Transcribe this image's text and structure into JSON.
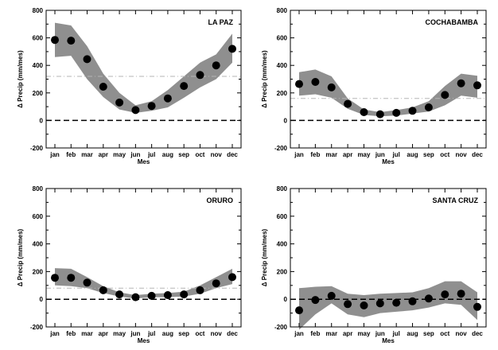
{
  "colors": {
    "band": "#8f8f8f",
    "marker": "#000000",
    "zero_line": "#000000",
    "reference_line": "#b6b6b6"
  },
  "chart_data": [
    {
      "type": "scatter",
      "title": "LA PAZ",
      "xlabel": "Mes",
      "ylabel": "Δ Precip (mm/mes)",
      "categories": [
        "jan",
        "feb",
        "mar",
        "apr",
        "may",
        "jun",
        "jul",
        "aug",
        "sep",
        "oct",
        "nov",
        "dec"
      ],
      "ylim": [
        -200,
        800
      ],
      "yticks": [
        -200,
        0,
        200,
        400,
        600,
        800
      ],
      "ytick_labels": [
        "-200",
        "0",
        "200",
        "400",
        "600",
        "800"
      ],
      "reference_value": 320,
      "grid": false,
      "series": [
        {
          "kind": "points",
          "values": [
            585,
            580,
            445,
            245,
            130,
            75,
            105,
            160,
            250,
            330,
            400,
            520
          ]
        },
        {
          "kind": "band_lower",
          "values": [
            460,
            470,
            300,
            170,
            80,
            55,
            70,
            95,
            165,
            240,
            300,
            420
          ]
        },
        {
          "kind": "band_upper",
          "values": [
            710,
            690,
            540,
            340,
            200,
            110,
            140,
            220,
            320,
            420,
            480,
            630
          ]
        }
      ]
    },
    {
      "type": "scatter",
      "title": "COCHABAMBA",
      "xlabel": "Mes",
      "ylabel": "Δ Precip (mm/mes)",
      "categories": [
        "jan",
        "feb",
        "mar",
        "apr",
        "may",
        "jun",
        "jul",
        "aug",
        "sep",
        "oct",
        "nov",
        "dec"
      ],
      "ylim": [
        -200,
        800
      ],
      "yticks": [
        -200,
        0,
        200,
        400,
        600,
        800
      ],
      "ytick_labels": [
        "-200",
        "0",
        "200",
        "400",
        "600",
        "800"
      ],
      "reference_value": 160,
      "grid": false,
      "series": [
        {
          "kind": "points",
          "values": [
            265,
            280,
            240,
            120,
            60,
            45,
            55,
            70,
            95,
            185,
            270,
            255
          ]
        },
        {
          "kind": "band_lower",
          "values": [
            180,
            190,
            165,
            85,
            40,
            30,
            35,
            50,
            65,
            110,
            180,
            165
          ]
        },
        {
          "kind": "band_upper",
          "values": [
            350,
            370,
            320,
            160,
            80,
            60,
            75,
            95,
            140,
            250,
            340,
            325
          ]
        }
      ]
    },
    {
      "type": "scatter",
      "title": "ORURO",
      "xlabel": "Mes",
      "ylabel": "Δ Precip (mm/mes)",
      "categories": [
        "jan",
        "feb",
        "mar",
        "apr",
        "may",
        "jun",
        "jul",
        "aug",
        "sep",
        "oct",
        "nov",
        "dec"
      ],
      "ylim": [
        -200,
        800
      ],
      "yticks": [
        -200,
        0,
        200,
        400,
        600,
        800
      ],
      "ytick_labels": [
        "-200",
        "0",
        "200",
        "400",
        "600",
        "800"
      ],
      "reference_value": 80,
      "grid": false,
      "series": [
        {
          "kind": "points",
          "values": [
            155,
            155,
            120,
            65,
            35,
            15,
            25,
            30,
            35,
            65,
            115,
            160
          ]
        },
        {
          "kind": "band_lower",
          "values": [
            100,
            95,
            80,
            45,
            20,
            5,
            15,
            15,
            20,
            40,
            80,
            110
          ]
        },
        {
          "kind": "band_upper",
          "values": [
            225,
            220,
            160,
            95,
            50,
            30,
            40,
            45,
            55,
            100,
            160,
            220
          ]
        }
      ]
    },
    {
      "type": "scatter",
      "title": "SANTA CRUZ",
      "xlabel": "Mes",
      "ylabel": "Δ Precip (mm/mes)",
      "categories": [
        "jan",
        "feb",
        "mar",
        "apr",
        "may",
        "jun",
        "jul",
        "aug",
        "sep",
        "oct",
        "nov",
        "dec"
      ],
      "ylim": [
        -200,
        800
      ],
      "yticks": [
        -200,
        0,
        200,
        400,
        600,
        800
      ],
      "ytick_labels": [
        "-200",
        "0",
        "200",
        "400",
        "600",
        "800"
      ],
      "reference_value": null,
      "grid": false,
      "series": [
        {
          "kind": "points",
          "values": [
            -80,
            -5,
            25,
            -35,
            -45,
            -30,
            -25,
            -15,
            5,
            35,
            40,
            -55
          ]
        },
        {
          "kind": "band_lower",
          "values": [
            -220,
            -110,
            -30,
            -110,
            -130,
            -100,
            -90,
            -80,
            -60,
            -30,
            -40,
            -150
          ]
        },
        {
          "kind": "band_upper",
          "values": [
            80,
            90,
            95,
            40,
            30,
            40,
            45,
            50,
            80,
            130,
            130,
            50
          ]
        }
      ]
    }
  ]
}
